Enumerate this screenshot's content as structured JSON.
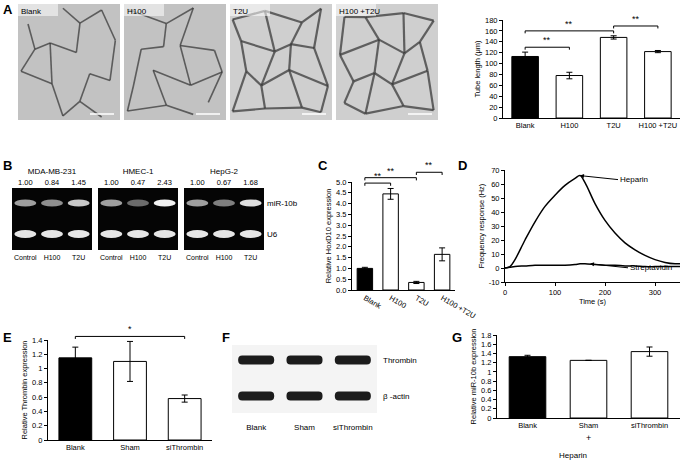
{
  "chart_data": [
    {
      "type": "bar",
      "y_label": "Tube length (μm)",
      "categories": [
        "Blank",
        "H100",
        "T2U",
        "H100 +T2U"
      ],
      "values": [
        113,
        78,
        148,
        122
      ],
      "errors": [
        8,
        6,
        3,
        2
      ],
      "colors": [
        "#000000",
        "#ffffff",
        "#ffffff",
        "#ffffff"
      ],
      "ylim": [
        0,
        180
      ],
      "yticks": [
        0,
        20,
        40,
        60,
        80,
        100,
        120,
        140,
        160,
        180
      ],
      "grid": false,
      "significance": [
        {
          "between": [
            0,
            1
          ],
          "text": "**"
        },
        {
          "between": [
            0,
            2
          ],
          "text": "**"
        },
        {
          "between": [
            2,
            3
          ],
          "text": "**"
        }
      ]
    },
    {
      "type": "bar",
      "panel": "C",
      "y_label": "Relative HoxD10 expression",
      "categories": [
        "Blank",
        "H100",
        "T2U",
        "H100 +T2U"
      ],
      "values": [
        1.0,
        4.45,
        0.35,
        1.65
      ],
      "errors": [
        0.05,
        0.25,
        0.05,
        0.3
      ],
      "colors": [
        "#000000",
        "#ffffff",
        "#ffffff",
        "#ffffff"
      ],
      "ylim": [
        0,
        5
      ],
      "yticks": [
        {
          "value": 0,
          "label": "0.0"
        },
        {
          "value": 0.5,
          "label": "0.5"
        },
        {
          "value": 1,
          "label": "1.0"
        },
        {
          "value": 1.5,
          "label": "1.5"
        },
        {
          "value": 2,
          "label": "2.0"
        },
        {
          "value": 2.5,
          "label": "2.5"
        },
        {
          "value": 3,
          "label": "3.0"
        },
        {
          "value": 3.5,
          "label": "3.5"
        },
        {
          "value": 4,
          "label": "4.0"
        },
        {
          "value": 4.5,
          "label": "4.5"
        },
        {
          "value": 5,
          "label": "5.0"
        }
      ],
      "grid": false,
      "significance": [
        {
          "between": [
            0,
            1
          ],
          "text": "**"
        },
        {
          "between": [
            0,
            2
          ],
          "text": "**"
        },
        {
          "between": [
            2,
            3
          ],
          "text": "**"
        }
      ]
    },
    {
      "type": "line",
      "panel": "D",
      "x_label": "Time (s)",
      "y_label": "Frequency response (Hz)",
      "x": [
        0,
        10,
        20,
        40,
        60,
        80,
        100,
        120,
        140,
        150,
        160,
        180,
        200,
        220,
        240,
        260,
        280,
        300,
        320,
        340,
        350
      ],
      "series": [
        {
          "name": "Heparin",
          "color": "#000000",
          "values": [
            0,
            1,
            6,
            20,
            33,
            44,
            52,
            59,
            64,
            66,
            61,
            46,
            34,
            25,
            18,
            13,
            9,
            6,
            4,
            3,
            3
          ]
        },
        {
          "name": "Streptavidin",
          "color": "#000000",
          "values": [
            0,
            0.5,
            1,
            1.5,
            2,
            2,
            2,
            2,
            2.5,
            3,
            3,
            2.5,
            2,
            2,
            1.5,
            1.5,
            1,
            1,
            1,
            1,
            1
          ]
        }
      ],
      "xlim": [
        0,
        350
      ],
      "xticks": [
        0,
        100,
        200,
        300
      ],
      "ylim": [
        -10,
        70
      ],
      "yticks": [
        -10,
        0,
        10,
        20,
        30,
        40,
        50,
        60,
        70
      ],
      "grid": false,
      "annotations": [
        {
          "text": "Heparin",
          "x": 150,
          "y": 66
        },
        {
          "text": "Streptavidin",
          "x": 170,
          "y": 3
        }
      ]
    },
    {
      "type": "bar",
      "panel": "E",
      "y_label": "Relative Thrombin expression",
      "categories": [
        "Blank",
        "Sham",
        "siThrombin"
      ],
      "values": [
        1.15,
        1.1,
        0.58
      ],
      "errors": [
        0.15,
        0.28,
        0.05
      ],
      "colors": [
        "#000000",
        "#ffffff",
        "#ffffff"
      ],
      "ylim": [
        0,
        1.4
      ],
      "yticks": [
        0,
        0.2,
        0.4,
        0.6,
        0.8,
        1,
        1.2,
        1.4
      ],
      "grid": false,
      "significance": [
        {
          "between": [
            0,
            2
          ],
          "text": "*"
        }
      ]
    },
    {
      "type": "bar",
      "panel": "G",
      "y_label": "Relative miR-10b expression",
      "categories": [
        "Blank",
        "Sham",
        "siThrombin"
      ],
      "values": [
        1.33,
        1.25,
        1.44
      ],
      "errors": [
        0.03,
        0,
        0.1
      ],
      "colors": [
        "#000000",
        "#ffffff",
        "#ffffff"
      ],
      "ylim": [
        0,
        1.8
      ],
      "yticks": [
        0,
        0.2,
        0.4,
        0.6,
        0.8,
        1,
        1.2,
        1.4,
        1.6,
        1.8
      ],
      "grid": false,
      "annotations": [
        {
          "text": "+",
          "at": "Sham"
        },
        {
          "text": "Heparin"
        }
      ]
    }
  ],
  "images": {
    "panel": "A",
    "labels": [
      "Blank",
      "H100",
      "T2U",
      "H100 +T2U"
    ]
  },
  "gel": {
    "panel": "B",
    "rows": [
      "miR-10b",
      "U6"
    ],
    "lanes": [
      "Control",
      "H100",
      "T2U"
    ],
    "cell_lines": [
      {
        "name": "MDA-MB-231",
        "values": [
          {
            "value": 1,
            "label": "1.00"
          },
          0.84,
          1.45
        ]
      },
      {
        "name": "HMEC-1",
        "values": [
          {
            "value": 1,
            "label": "1.00"
          },
          0.47,
          2.43
        ]
      },
      {
        "name": "HepG-2",
        "values": [
          {
            "value": 1,
            "label": "1.00"
          },
          0.67,
          1.68
        ]
      }
    ]
  },
  "blot": {
    "panel": "F",
    "rows": [
      "Thrombin",
      "β -actin"
    ],
    "lanes": [
      "Blank",
      "Sham",
      "siThrombin"
    ]
  }
}
